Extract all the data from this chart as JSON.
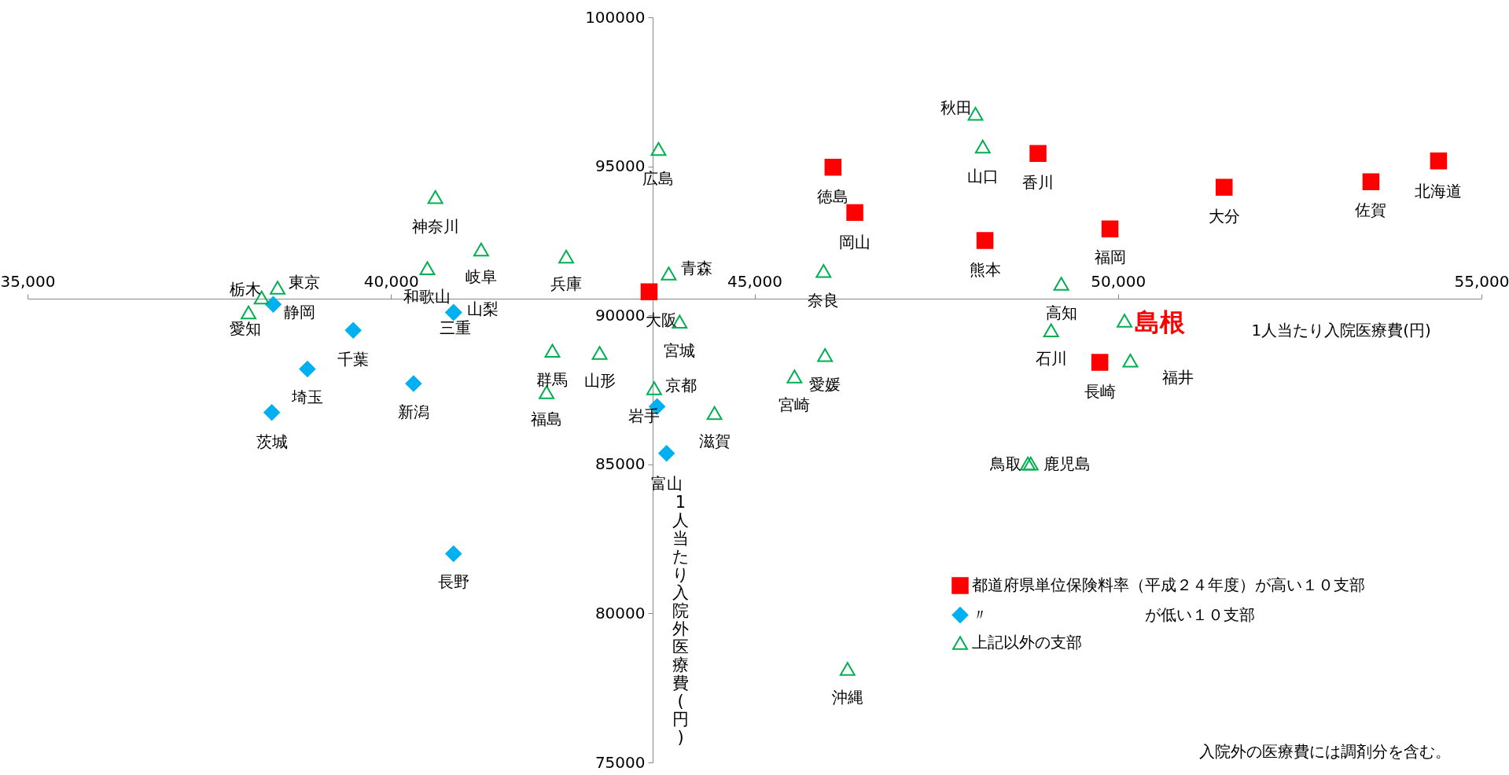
{
  "chart_data": {
    "type": "scatter",
    "xlabel": "1人当たり入院医療費(円)",
    "ylabel": "1人当たり入院外医療費(円)",
    "xlim": [
      35000,
      55000
    ],
    "ylim": [
      75000,
      100000
    ],
    "xticks": [
      {
        "value": 35000,
        "label": "35,000"
      },
      {
        "value": 40000,
        "label": "40,000"
      },
      {
        "value": 45000,
        "label": "45,000"
      },
      {
        "value": 50000,
        "label": "50,000"
      },
      {
        "value": 55000,
        "label": "55,000"
      }
    ],
    "yticks": [
      75000,
      80000,
      85000,
      90000,
      95000,
      100000
    ],
    "legend": "bottom right",
    "series": [
      {
        "name": "都道府県単位保険料率（平成２４年度）が高い１０支部",
        "color": "#ff0000",
        "marker": "square",
        "x": [
          43550,
          46080,
          46380,
          48900,
          48170,
          49890,
          51460,
          53480,
          54410,
          49750
        ],
        "values": [
          90790,
          94970,
          93450,
          95430,
          92510,
          92900,
          94300,
          94480,
          95180,
          88420
        ]
      },
      {
        "name": "〃　　　　　　　　　　が低い１０支部",
        "color": "#00b0f0",
        "marker": "diamond",
        "x": [
          38380,
          39480,
          38850,
          40310,
          38360,
          40860,
          40860,
          40860,
          43790,
          43660
        ],
        "values": [
          90370,
          89500,
          88200,
          87710,
          86740,
          90100,
          90100,
          82000,
          85370,
          86940
        ]
      },
      {
        "name": "上記以外の支部",
        "color": "#00b050",
        "marker": "triangle",
        "x": [
          40610,
          41240,
          40500,
          38440,
          38220,
          38040,
          43680,
          42410,
          43820,
          45950,
          43970,
          42220,
          42870,
          45970,
          45550,
          43620,
          42140,
          44450,
          46280,
          48040,
          48140,
          49220,
          50090,
          49080,
          50170,
          48760,
          48800
        ],
        "values": [
          93970,
          92210,
          91580,
          90930,
          90600,
          90100,
          95580,
          91970,
          91400,
          91490,
          89790,
          88810,
          88740,
          88670,
          87950,
          87550,
          87420,
          86720,
          78140,
          96760,
          95660,
          91060,
          89820,
          89500,
          88480,
          85030,
          85030
        ]
      }
    ],
    "annotations": [
      {
        "text": "大阪",
        "x": 43550,
        "y": 90790
      },
      {
        "text": "徳島",
        "x": 46080,
        "y": 94970
      },
      {
        "text": "岡山",
        "x": 46380,
        "y": 93450
      },
      {
        "text": "香川",
        "x": 48900,
        "y": 95430
      },
      {
        "text": "熊本",
        "x": 48170,
        "y": 92510
      },
      {
        "text": "福岡",
        "x": 49890,
        "y": 92900
      },
      {
        "text": "大分",
        "x": 51460,
        "y": 94300
      },
      {
        "text": "佐賀",
        "x": 53480,
        "y": 94480
      },
      {
        "text": "北海道",
        "x": 54410,
        "y": 95180
      },
      {
        "text": "長崎",
        "x": 49750,
        "y": 88420
      },
      {
        "text": "静岡",
        "x": 38380,
        "y": 90370
      },
      {
        "text": "千葉",
        "x": 39480,
        "y": 89500
      },
      {
        "text": "埼玉",
        "x": 38850,
        "y": 88200
      },
      {
        "text": "新潟",
        "x": 40310,
        "y": 87710
      },
      {
        "text": "茨城",
        "x": 38360,
        "y": 86740
      },
      {
        "text": "山梨",
        "x": 40860,
        "y": 90100
      },
      {
        "text": "三重",
        "x": 40860,
        "y": 90100
      },
      {
        "text": "長野",
        "x": 40860,
        "y": 82000
      },
      {
        "text": "富山",
        "x": 43790,
        "y": 85370
      },
      {
        "text": "岩手",
        "x": 43660,
        "y": 86940
      },
      {
        "text": "神奈川",
        "x": 40610,
        "y": 93970
      },
      {
        "text": "岐阜",
        "x": 41240,
        "y": 92210
      },
      {
        "text": "和歌山",
        "x": 40500,
        "y": 91580
      },
      {
        "text": "東京",
        "x": 38440,
        "y": 90930
      },
      {
        "text": "栃木",
        "x": 38220,
        "y": 90600
      },
      {
        "text": "愛知",
        "x": 38040,
        "y": 90100
      },
      {
        "text": "広島",
        "x": 43680,
        "y": 95580
      },
      {
        "text": "兵庫",
        "x": 42410,
        "y": 91970
      },
      {
        "text": "青森",
        "x": 43820,
        "y": 91400
      },
      {
        "text": "奈良",
        "x": 45950,
        "y": 91490
      },
      {
        "text": "宮城",
        "x": 43970,
        "y": 89790
      },
      {
        "text": "群馬",
        "x": 42220,
        "y": 88810
      },
      {
        "text": "山形",
        "x": 42870,
        "y": 88740
      },
      {
        "text": "愛媛",
        "x": 45970,
        "y": 88670
      },
      {
        "text": "宮崎",
        "x": 45550,
        "y": 87950
      },
      {
        "text": "京都",
        "x": 43620,
        "y": 87550
      },
      {
        "text": "福島",
        "x": 42140,
        "y": 87420
      },
      {
        "text": "滋賀",
        "x": 44450,
        "y": 86720
      },
      {
        "text": "沖縄",
        "x": 46280,
        "y": 78140
      },
      {
        "text": "秋田",
        "x": 48040,
        "y": 96760
      },
      {
        "text": "山口",
        "x": 48140,
        "y": 95660
      },
      {
        "text": "高知",
        "x": 49220,
        "y": 91060
      },
      {
        "text": "島根",
        "x": 50090,
        "y": 89820
      },
      {
        "text": "石川",
        "x": 49080,
        "y": 89500
      },
      {
        "text": "福井",
        "x": 50170,
        "y": 88480
      },
      {
        "text": "鳥取",
        "x": 48760,
        "y": 85030
      },
      {
        "text": "鹿児島",
        "x": 48800,
        "y": 85030
      },
      "入院外の医療費には調剤分を含む。"
    ]
  }
}
